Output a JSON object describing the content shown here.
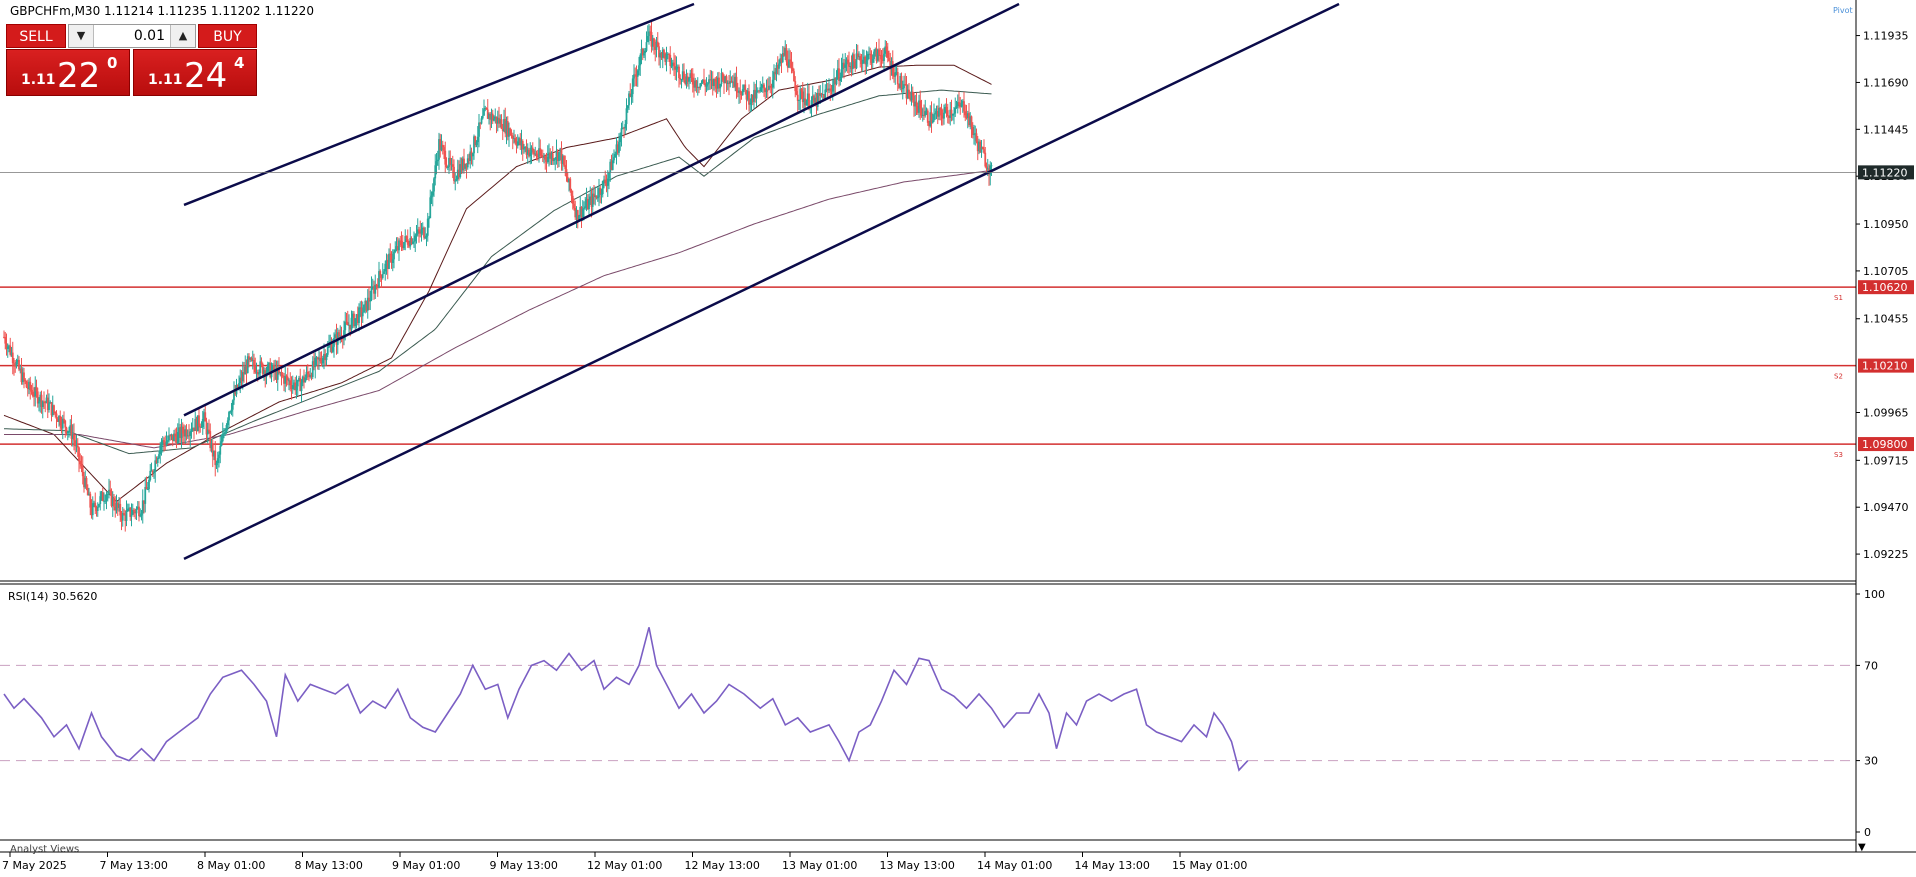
{
  "header": {
    "symbol_info": "GBPCHFm,M30  1.11214 1.11235 1.11202 1.11220"
  },
  "trade_panel": {
    "sell_label": "SELL",
    "buy_label": "BUY",
    "lot": "0.01",
    "sell_prefix": "1.11",
    "sell_big": "22",
    "sell_sup": "0",
    "buy_prefix": "1.11",
    "buy_big": "24",
    "buy_sup": "4"
  },
  "pivot_label": "Pivot",
  "analyst_views_label": "Analyst Views",
  "colors": {
    "bull": "#26a69a",
    "bear": "#ef5350",
    "channel": "#0b0b4a",
    "level": "#d32f2f",
    "rsi": "#7b5fc4",
    "ma_fast": "#5a1a1a",
    "ma_mid": "#3a5a50",
    "ma_slow": "#7a4a6a"
  },
  "chart_data": [
    {
      "type": "candlestick",
      "symbol": "GBPCHFm",
      "timeframe": "M30",
      "ylim": [
        1.091,
        1.121
      ],
      "y_ticks": [
        "1.11935",
        "1.11690",
        "1.11445",
        "1.11200",
        "1.10950",
        "1.10705",
        "1.10455",
        "1.09965",
        "1.09715",
        "1.09470",
        "1.09225"
      ],
      "x_ticks": [
        "7 May 2025",
        "7 May 13:00",
        "8 May 01:00",
        "8 May 13:00",
        "9 May 01:00",
        "9 May 13:00",
        "12 May 01:00",
        "12 May 13:00",
        "13 May 01:00",
        "13 May 13:00",
        "14 May 01:00",
        "14 May 13:00",
        "15 May 01:00"
      ],
      "current_price": "1.11220",
      "levels": [
        {
          "name": "S1",
          "price": 1.1062,
          "label": "1.10620"
        },
        {
          "name": "S2",
          "price": 1.1021,
          "label": "1.10210"
        },
        {
          "name": "S3",
          "price": 1.098,
          "label": "1.09800"
        }
      ],
      "close_path": [
        [
          0,
          1.1036
        ],
        [
          18,
          1.101
        ],
        [
          36,
          1.1
        ],
        [
          55,
          1.0985
        ],
        [
          70,
          1.0945
        ],
        [
          82,
          1.0955
        ],
        [
          95,
          1.0942
        ],
        [
          110,
          1.0947
        ],
        [
          125,
          1.098
        ],
        [
          140,
          1.0985
        ],
        [
          160,
          1.0993
        ],
        [
          170,
          1.0968
        ],
        [
          180,
          1.0998
        ],
        [
          195,
          1.1022
        ],
        [
          215,
          1.1018
        ],
        [
          235,
          1.101
        ],
        [
          250,
          1.1022
        ],
        [
          262,
          1.1032
        ],
        [
          275,
          1.1042
        ],
        [
          288,
          1.105
        ],
        [
          302,
          1.107
        ],
        [
          318,
          1.1085
        ],
        [
          338,
          1.1092
        ],
        [
          348,
          1.1137
        ],
        [
          360,
          1.112
        ],
        [
          372,
          1.113
        ],
        [
          385,
          1.1153
        ],
        [
          400,
          1.1147
        ],
        [
          415,
          1.1135
        ],
        [
          430,
          1.113
        ],
        [
          445,
          1.1132
        ],
        [
          458,
          1.11
        ],
        [
          470,
          1.1107
        ],
        [
          482,
          1.1118
        ],
        [
          493,
          1.114
        ],
        [
          505,
          1.1173
        ],
        [
          515,
          1.1193
        ],
        [
          532,
          1.118
        ],
        [
          548,
          1.117
        ],
        [
          565,
          1.1168
        ],
        [
          580,
          1.1172
        ],
        [
          598,
          1.116
        ],
        [
          615,
          1.117
        ],
        [
          625,
          1.1185
        ],
        [
          635,
          1.1163
        ],
        [
          648,
          1.1158
        ],
        [
          660,
          1.1165
        ],
        [
          672,
          1.1178
        ],
        [
          688,
          1.1182
        ],
        [
          705,
          1.1184
        ],
        [
          720,
          1.1165
        ],
        [
          740,
          1.115
        ],
        [
          752,
          1.1153
        ],
        [
          768,
          1.1157
        ],
        [
          778,
          1.1138
        ],
        [
          790,
          1.1122
        ]
      ],
      "moving_averages": [
        {
          "color_key": "ma_fast",
          "path": [
            [
              0,
              1.0995
            ],
            [
              40,
              1.0985
            ],
            [
              90,
              1.095
            ],
            [
              130,
              1.097
            ],
            [
              170,
              1.0985
            ],
            [
              220,
              1.1002
            ],
            [
              270,
              1.1012
            ],
            [
              310,
              1.1025
            ],
            [
              340,
              1.106
            ],
            [
              370,
              1.1103
            ],
            [
              410,
              1.1125
            ],
            [
              450,
              1.1135
            ],
            [
              490,
              1.114
            ],
            [
              530,
              1.115
            ],
            [
              545,
              1.1135
            ],
            [
              560,
              1.1125
            ],
            [
              590,
              1.115
            ],
            [
              620,
              1.1165
            ],
            [
              660,
              1.117
            ],
            [
              700,
              1.1177
            ],
            [
              730,
              1.1178
            ],
            [
              760,
              1.1178
            ],
            [
              790,
              1.1168
            ]
          ]
        },
        {
          "color_key": "ma_mid",
          "path": [
            [
              0,
              1.0988
            ],
            [
              50,
              1.0987
            ],
            [
              100,
              1.0975
            ],
            [
              150,
              1.0978
            ],
            [
              200,
              1.0992
            ],
            [
              250,
              1.1005
            ],
            [
              300,
              1.1018
            ],
            [
              345,
              1.104
            ],
            [
              390,
              1.1078
            ],
            [
              440,
              1.1102
            ],
            [
              490,
              1.112
            ],
            [
              540,
              1.113
            ],
            [
              560,
              1.112
            ],
            [
              600,
              1.114
            ],
            [
              650,
              1.1152
            ],
            [
              700,
              1.1162
            ],
            [
              750,
              1.1165
            ],
            [
              790,
              1.1163
            ]
          ]
        },
        {
          "color_key": "ma_slow",
          "path": [
            [
              0,
              1.0985
            ],
            [
              60,
              1.0985
            ],
            [
              120,
              1.0978
            ],
            [
              180,
              1.0985
            ],
            [
              240,
              1.0997
            ],
            [
              300,
              1.1008
            ],
            [
              360,
              1.103
            ],
            [
              420,
              1.105
            ],
            [
              480,
              1.1068
            ],
            [
              540,
              1.108
            ],
            [
              600,
              1.1095
            ],
            [
              660,
              1.1108
            ],
            [
              720,
              1.1117
            ],
            [
              790,
              1.1123
            ]
          ]
        }
      ],
      "channel_lines": [
        {
          "from": [
            180,
            1.1105
          ],
          "to": [
            690,
            1.121
          ]
        },
        {
          "from": [
            180,
            1.0995
          ],
          "to": [
            1015,
            1.121
          ]
        },
        {
          "from": [
            180,
            1.092
          ],
          "to": [
            1335,
            1.121
          ]
        }
      ]
    },
    {
      "type": "line",
      "indicator_label": "RSI(14) 30.5620",
      "ylim": [
        0,
        100
      ],
      "y_ticks": [
        "100",
        "70",
        "30",
        "0"
      ],
      "guides": [
        70,
        30
      ],
      "values": [
        [
          0,
          58
        ],
        [
          8,
          52
        ],
        [
          16,
          56
        ],
        [
          30,
          48
        ],
        [
          40,
          40
        ],
        [
          50,
          45
        ],
        [
          60,
          35
        ],
        [
          70,
          50
        ],
        [
          78,
          40
        ],
        [
          90,
          32
        ],
        [
          100,
          30
        ],
        [
          110,
          35
        ],
        [
          120,
          30
        ],
        [
          130,
          38
        ],
        [
          140,
          42
        ],
        [
          155,
          48
        ],
        [
          165,
          58
        ],
        [
          175,
          65
        ],
        [
          190,
          68
        ],
        [
          200,
          62
        ],
        [
          210,
          55
        ],
        [
          218,
          40
        ],
        [
          225,
          66
        ],
        [
          235,
          55
        ],
        [
          245,
          62
        ],
        [
          255,
          60
        ],
        [
          265,
          58
        ],
        [
          275,
          62
        ],
        [
          285,
          50
        ],
        [
          295,
          55
        ],
        [
          305,
          52
        ],
        [
          315,
          60
        ],
        [
          325,
          48
        ],
        [
          335,
          44
        ],
        [
          345,
          42
        ],
        [
          355,
          50
        ],
        [
          365,
          58
        ],
        [
          375,
          70
        ],
        [
          385,
          60
        ],
        [
          395,
          62
        ],
        [
          403,
          48
        ],
        [
          412,
          60
        ],
        [
          422,
          70
        ],
        [
          432,
          72
        ],
        [
          442,
          68
        ],
        [
          452,
          75
        ],
        [
          462,
          68
        ],
        [
          472,
          72
        ],
        [
          480,
          60
        ],
        [
          490,
          65
        ],
        [
          500,
          62
        ],
        [
          508,
          70
        ],
        [
          516,
          86
        ],
        [
          522,
          70
        ],
        [
          530,
          62
        ],
        [
          540,
          52
        ],
        [
          550,
          58
        ],
        [
          560,
          50
        ],
        [
          570,
          55
        ],
        [
          580,
          62
        ],
        [
          592,
          58
        ],
        [
          605,
          52
        ],
        [
          615,
          56
        ],
        [
          625,
          45
        ],
        [
          635,
          48
        ],
        [
          645,
          42
        ],
        [
          660,
          45
        ],
        [
          668,
          38
        ],
        [
          676,
          30
        ],
        [
          684,
          42
        ],
        [
          693,
          45
        ],
        [
          702,
          55
        ],
        [
          712,
          68
        ],
        [
          722,
          62
        ],
        [
          732,
          73
        ],
        [
          740,
          72
        ],
        [
          750,
          60
        ],
        [
          760,
          57
        ],
        [
          770,
          52
        ],
        [
          780,
          58
        ],
        [
          790,
          52
        ],
        [
          800,
          44
        ],
        [
          810,
          50
        ],
        [
          820,
          50
        ],
        [
          828,
          58
        ],
        [
          836,
          50
        ],
        [
          842,
          35
        ],
        [
          850,
          50
        ],
        [
          858,
          45
        ],
        [
          866,
          55
        ],
        [
          876,
          58
        ],
        [
          886,
          55
        ],
        [
          896,
          58
        ],
        [
          906,
          60
        ],
        [
          914,
          45
        ],
        [
          922,
          42
        ],
        [
          932,
          40
        ],
        [
          942,
          38
        ],
        [
          952,
          45
        ],
        [
          962,
          40
        ],
        [
          968,
          50
        ],
        [
          975,
          45
        ],
        [
          982,
          38
        ],
        [
          988,
          26
        ],
        [
          995,
          30
        ]
      ]
    }
  ]
}
